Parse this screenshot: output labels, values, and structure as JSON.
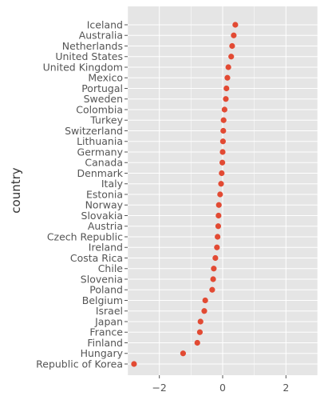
{
  "colors": {
    "panel": "#e5e5e5",
    "grid": "#ffffff",
    "point": "#e24a33",
    "tick_text": "#555555"
  },
  "chart_data": {
    "type": "scatter",
    "title": "",
    "xlabel": "",
    "ylabel": "country",
    "grid": true,
    "xlim": [
      -3.0,
      3.0
    ],
    "xticks": [
      -2,
      0,
      2
    ],
    "xtick_labels": [
      "−2",
      "0",
      "2"
    ],
    "points": [
      {
        "country": "Iceland",
        "value": 0.4
      },
      {
        "country": "Australia",
        "value": 0.35
      },
      {
        "country": "Netherlands",
        "value": 0.3
      },
      {
        "country": "United States",
        "value": 0.27
      },
      {
        "country": "United Kingdom",
        "value": 0.18
      },
      {
        "country": "Mexico",
        "value": 0.15
      },
      {
        "country": "Portugal",
        "value": 0.12
      },
      {
        "country": "Sweden",
        "value": 0.1
      },
      {
        "country": "Colombia",
        "value": 0.06
      },
      {
        "country": "Turkey",
        "value": 0.03
      },
      {
        "country": "Switzerland",
        "value": 0.02
      },
      {
        "country": "Lithuania",
        "value": 0.01
      },
      {
        "country": "Germany",
        "value": 0.0
      },
      {
        "country": "Canada",
        "value": -0.01
      },
      {
        "country": "Denmark",
        "value": -0.03
      },
      {
        "country": "Italy",
        "value": -0.05
      },
      {
        "country": "Estonia",
        "value": -0.08
      },
      {
        "country": "Norway",
        "value": -0.12
      },
      {
        "country": "Slovakia",
        "value": -0.13
      },
      {
        "country": "Austria",
        "value": -0.14
      },
      {
        "country": "Czech Republic",
        "value": -0.16
      },
      {
        "country": "Ireland",
        "value": -0.18
      },
      {
        "country": "Costa Rica",
        "value": -0.23
      },
      {
        "country": "Chile",
        "value": -0.28
      },
      {
        "country": "Slovenia",
        "value": -0.3
      },
      {
        "country": "Poland",
        "value": -0.33
      },
      {
        "country": "Belgium",
        "value": -0.55
      },
      {
        "country": "Israel",
        "value": -0.58
      },
      {
        "country": "Japan",
        "value": -0.7
      },
      {
        "country": "France",
        "value": -0.72
      },
      {
        "country": "Finland",
        "value": -0.8
      },
      {
        "country": "Hungary",
        "value": -1.25
      },
      {
        "country": "Republic of Korea",
        "value": -2.8
      }
    ]
  }
}
